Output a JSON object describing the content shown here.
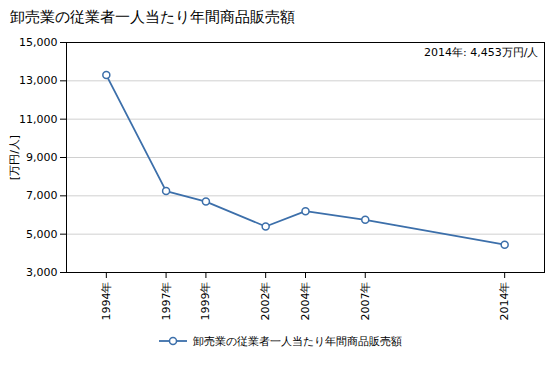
{
  "chart_data": {
    "type": "line",
    "title": "卸売業の従業者一人当たり年間商品販売額",
    "y_label": "[万円/人]",
    "annotation": "2014年: 4,453万円/人",
    "x": [
      1994,
      1997,
      1999,
      2002,
      2004,
      2007,
      2014
    ],
    "series": [
      {
        "name": "卸売業の従業者一人当たり年間商品販売額",
        "color": "#3c6faa",
        "marker": "o",
        "values": [
          13300,
          7250,
          6700,
          5400,
          6200,
          5750,
          4453
        ]
      }
    ],
    "xlim": [
      1992,
      2016
    ],
    "xticks": [
      {
        "value": 1994,
        "label": "1994年"
      },
      {
        "value": 1997,
        "label": "1997年"
      },
      {
        "value": 1999,
        "label": "1999年"
      },
      {
        "value": 2002,
        "label": "2002年"
      },
      {
        "value": 2004,
        "label": "2004年"
      },
      {
        "value": 2007,
        "label": "2007年"
      },
      {
        "value": 2014,
        "label": "2014年"
      }
    ],
    "ylim": [
      3000,
      15000
    ],
    "yticks": [
      {
        "value": 3000,
        "label": "3,000"
      },
      {
        "value": 5000,
        "label": "5,000"
      },
      {
        "value": 7000,
        "label": "7,000"
      },
      {
        "value": 9000,
        "label": "9,000"
      },
      {
        "value": 11000,
        "label": "11,000"
      },
      {
        "value": 13000,
        "label": "13,000"
      },
      {
        "value": 15000,
        "label": "15,000"
      }
    ],
    "grid": true,
    "legend": "bottom"
  }
}
